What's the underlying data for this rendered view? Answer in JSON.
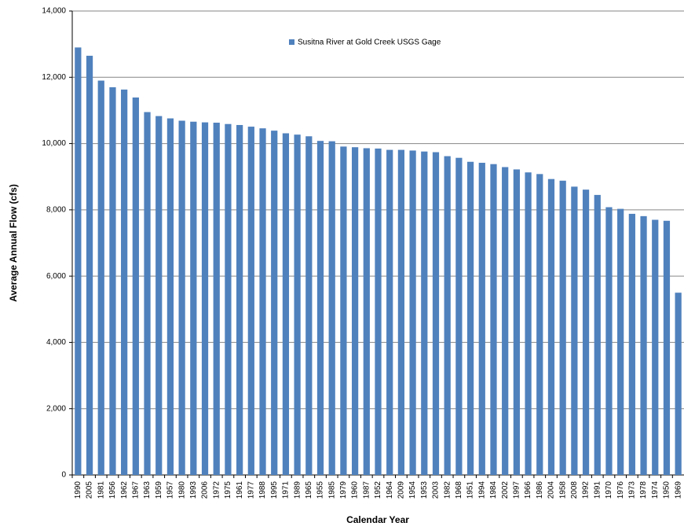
{
  "chart_data": {
    "type": "bar",
    "x_label": "Calendar Year",
    "y_label": "Average Annual Flow (cfs)",
    "categories": [
      "1990",
      "2005",
      "1981",
      "1956",
      "1962",
      "1967",
      "1963",
      "1959",
      "1957",
      "1980",
      "1993",
      "2006",
      "1972",
      "1975",
      "1961",
      "1977",
      "1988",
      "1995",
      "1971",
      "1989",
      "1965",
      "1955",
      "1985",
      "1979",
      "1960",
      "1987",
      "1952",
      "1964",
      "2009",
      "1954",
      "1953",
      "2003",
      "1982",
      "1968",
      "1951",
      "1994",
      "1984",
      "2002",
      "1997",
      "1966",
      "1986",
      "2004",
      "1958",
      "2008",
      "1992",
      "1991",
      "1970",
      "1976",
      "1973",
      "1978",
      "1974",
      "1950",
      "1969"
    ],
    "series": [
      {
        "name": "Susitna River at Gold Creek USGS Gage",
        "color": "#4f81bd",
        "values": [
          12900,
          12650,
          11900,
          11700,
          11630,
          11390,
          10950,
          10830,
          10760,
          10690,
          10660,
          10640,
          10630,
          10590,
          10560,
          10510,
          10460,
          10390,
          10310,
          10270,
          10220,
          10080,
          10070,
          9910,
          9890,
          9860,
          9850,
          9810,
          9810,
          9790,
          9760,
          9740,
          9620,
          9570,
          9450,
          9420,
          9380,
          9290,
          9220,
          9130,
          9080,
          8930,
          8880,
          8700,
          8610,
          8450,
          8080,
          8030,
          7880,
          7810,
          7700,
          7670,
          5500
        ]
      }
    ],
    "ylim": [
      0,
      14000
    ],
    "yticks": [
      0,
      {
        "value": 2000,
        "label": "2,000"
      },
      {
        "value": 4000,
        "label": "4,000"
      },
      {
        "value": 6000,
        "label": "6,000"
      },
      {
        "value": 8000,
        "label": "8,000"
      },
      {
        "value": 10000,
        "label": "10,000"
      },
      {
        "value": 12000,
        "label": "12,000"
      },
      {
        "value": 14000,
        "label": "14,000"
      }
    ],
    "grid": true
  }
}
